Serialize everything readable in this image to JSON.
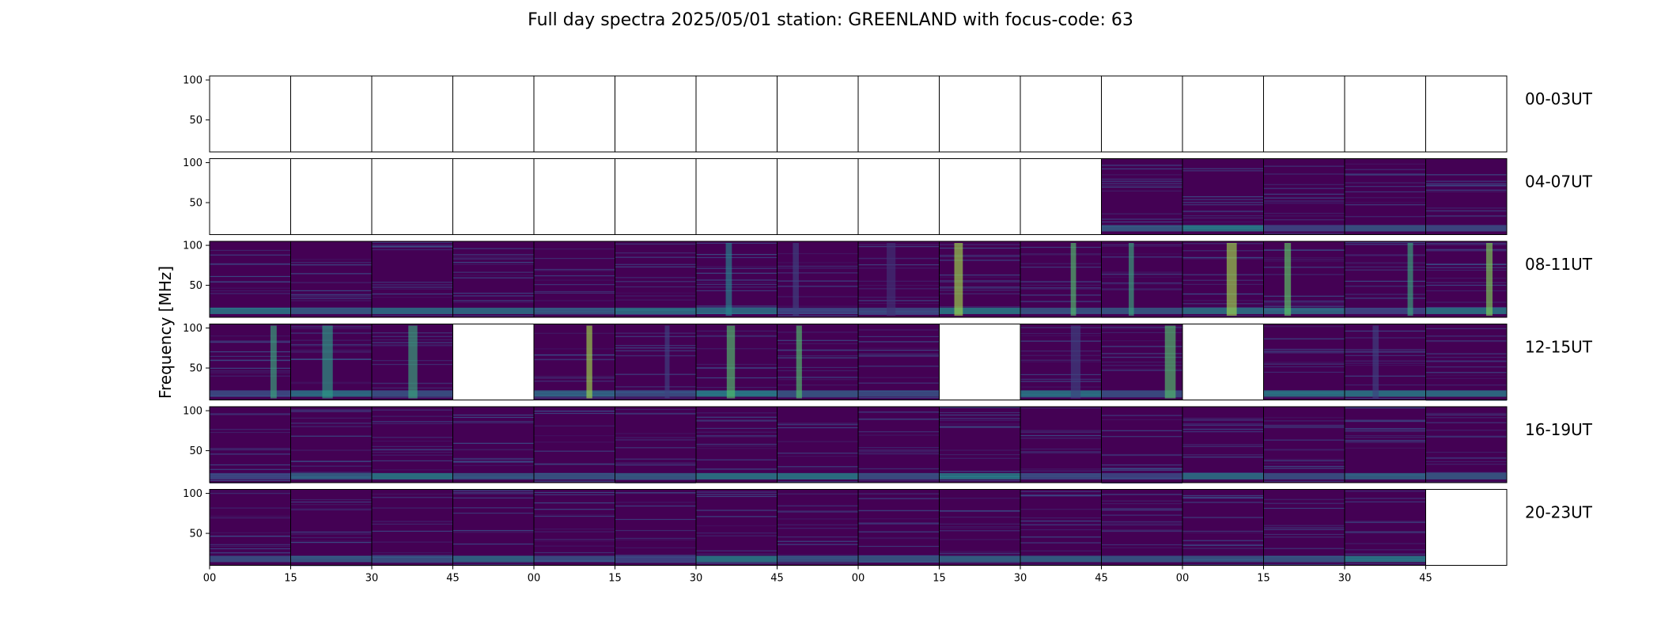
{
  "title": "Full day spectra 2025/05/01 station: GREENLAND with focus-code: 63",
  "colors": {
    "viridis_dark": "#440154",
    "viridis_mid": "#3b528b",
    "viridis_teal": "#21918c",
    "viridis_green": "#5ec962",
    "viridis_yellow": "#fde725",
    "frame": "#000000",
    "empty": "#ffffff"
  },
  "chart_data": {
    "type": "heatmap",
    "colormap": "viridis",
    "ylabel": "Frequency [MHz]",
    "ylim": [
      10,
      105
    ],
    "yticks": [
      50,
      100
    ],
    "panels_per_row": 16,
    "panel_duration_min": 15,
    "xtick_labels": [
      "00",
      "15",
      "30",
      "45",
      "00",
      "15",
      "30",
      "45",
      "00",
      "15",
      "30",
      "45",
      "00",
      "15",
      "30",
      "45"
    ],
    "grid": false,
    "rows": [
      {
        "label": "00-03UT",
        "status": [
          "empty",
          "empty",
          "empty",
          "empty",
          "empty",
          "empty",
          "empty",
          "empty",
          "empty",
          "empty",
          "empty",
          "empty",
          "empty",
          "empty",
          "empty",
          "empty"
        ],
        "burst": [
          0,
          0,
          0,
          0,
          0,
          0,
          0,
          0,
          0,
          0,
          0,
          0,
          0,
          0,
          0,
          0
        ]
      },
      {
        "label": "04-07UT",
        "status": [
          "empty",
          "empty",
          "empty",
          "empty",
          "empty",
          "empty",
          "empty",
          "empty",
          "empty",
          "empty",
          "empty",
          "data",
          "data",
          "data",
          "data",
          "data"
        ],
        "burst": [
          0,
          0,
          0,
          0,
          0,
          0,
          0,
          0,
          0,
          0,
          0,
          0,
          0,
          0,
          0,
          0
        ]
      },
      {
        "label": "08-11UT",
        "status": [
          "data",
          "data",
          "data",
          "data",
          "data",
          "data",
          "data",
          "data",
          "data",
          "data",
          "data",
          "data",
          "data",
          "data",
          "data",
          "data"
        ],
        "burst": [
          0,
          0,
          0,
          0,
          0,
          0,
          0.45,
          0.2,
          0.15,
          0.85,
          0.7,
          0.6,
          0.85,
          0.75,
          0.6,
          0.8
        ]
      },
      {
        "label": "12-15UT",
        "status": [
          "data",
          "data",
          "data",
          "empty",
          "data",
          "data",
          "data",
          "data",
          "data",
          "empty",
          "data",
          "data",
          "empty",
          "data",
          "data",
          "data"
        ],
        "burst": [
          0.6,
          0.55,
          0.6,
          0,
          0.85,
          0.2,
          0.7,
          0.7,
          0,
          0,
          0.2,
          0.7,
          0,
          0,
          0.2,
          0
        ]
      },
      {
        "label": "16-19UT",
        "status": [
          "data",
          "data",
          "data",
          "data",
          "data",
          "data",
          "data",
          "data",
          "data",
          "data",
          "data",
          "data",
          "data",
          "data",
          "data",
          "data"
        ],
        "burst": [
          0,
          0,
          0,
          0,
          0,
          0,
          0,
          0,
          0,
          0,
          0,
          0,
          0,
          0,
          0,
          0
        ]
      },
      {
        "label": "20-23UT",
        "status": [
          "data",
          "data",
          "data",
          "data",
          "data",
          "data",
          "data",
          "data",
          "data",
          "data",
          "data",
          "data",
          "data",
          "data",
          "data",
          "empty"
        ],
        "burst": [
          0,
          0,
          0,
          0,
          0,
          0,
          0,
          0,
          0,
          0,
          0,
          0,
          0,
          0,
          0,
          0
        ]
      }
    ]
  }
}
